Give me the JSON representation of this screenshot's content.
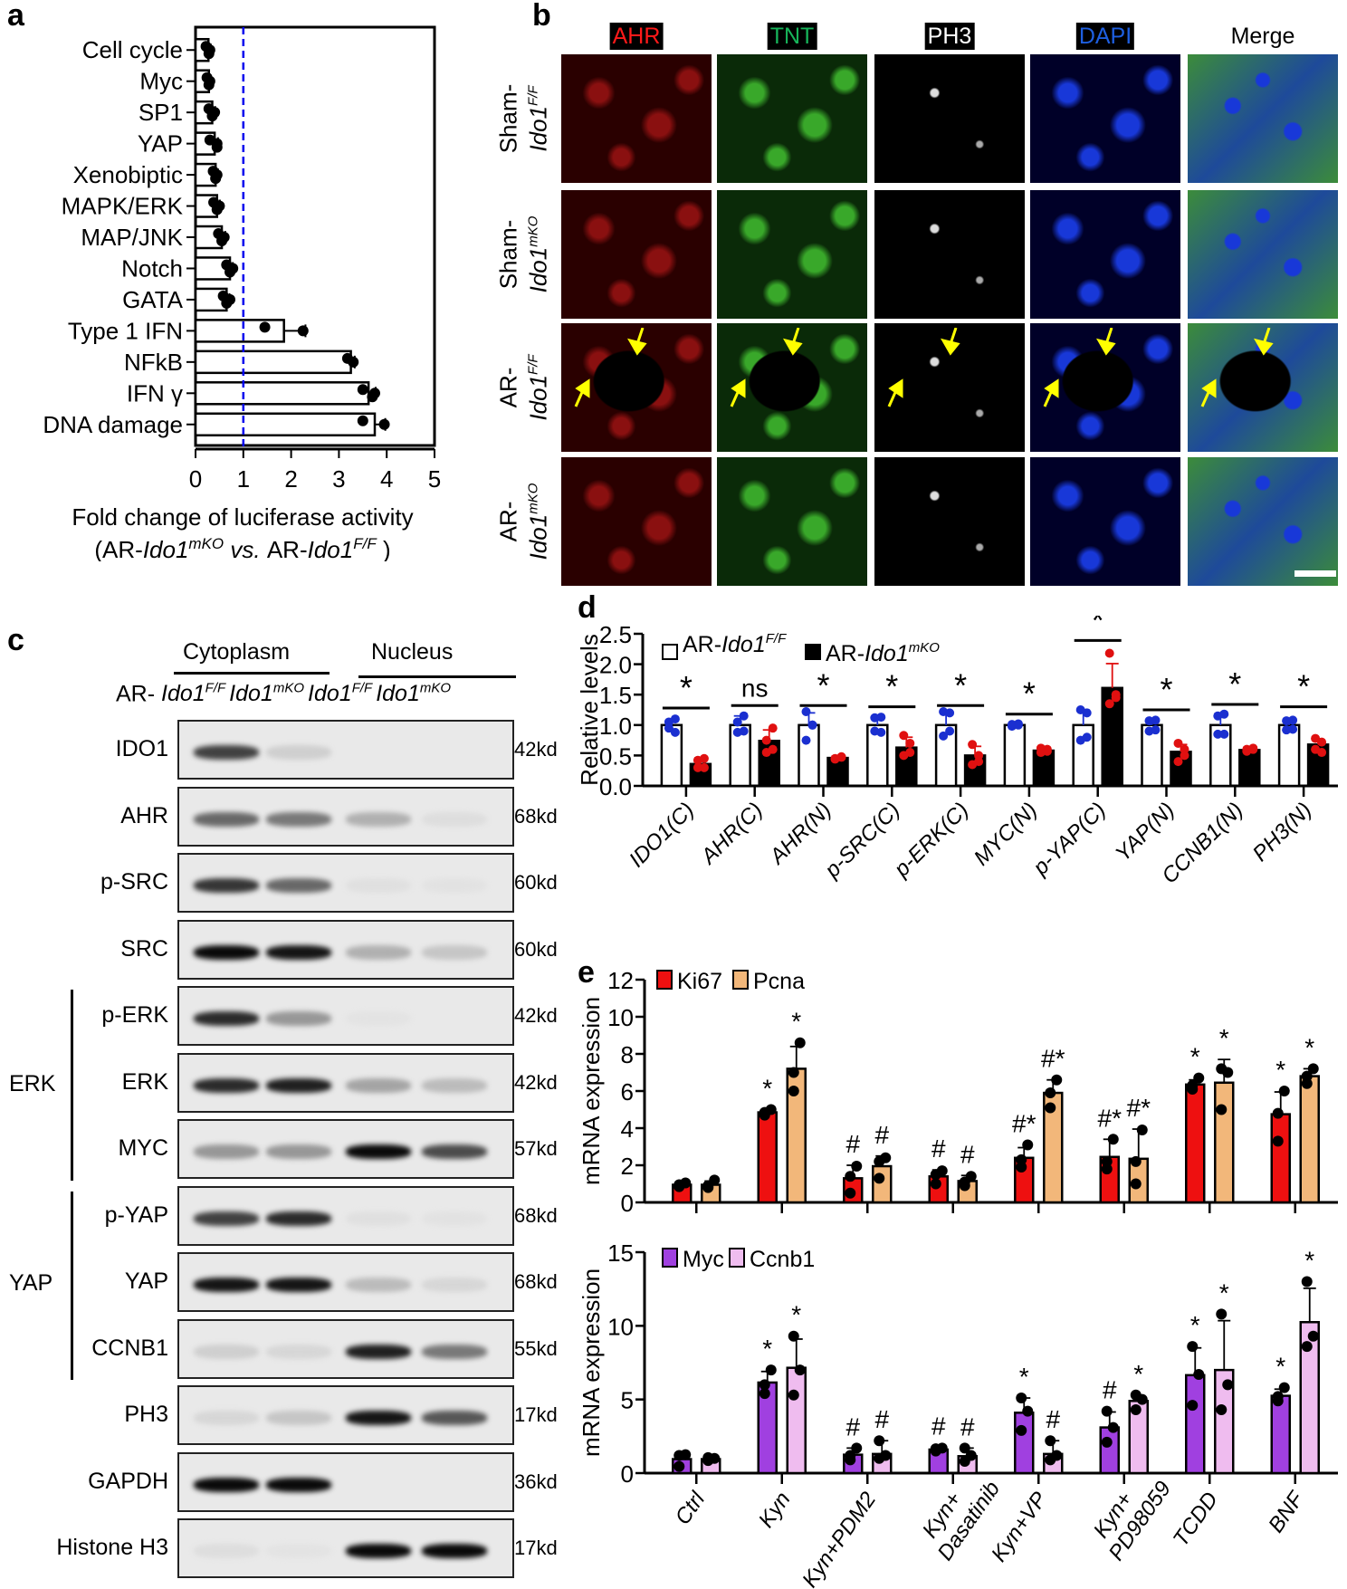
{
  "panels": {
    "a": {
      "letter": "a"
    },
    "b": {
      "letter": "b"
    },
    "c": {
      "letter": "c"
    },
    "d": {
      "letter": "d"
    },
    "e": {
      "letter": "e"
    }
  },
  "panel_b": {
    "channels": [
      {
        "label": "AHR",
        "color": "#ff1a1a"
      },
      {
        "label": "TNT",
        "color": "#17b45a"
      },
      {
        "label": "PH3",
        "color": "#ffffff"
      },
      {
        "label": "DAPI",
        "color": "#1e5fe0"
      },
      {
        "label": "Merge",
        "color": "#000000"
      }
    ],
    "rows": [
      {
        "prefix": "Sham-",
        "gene": "Ido1",
        "sup": "F/F"
      },
      {
        "prefix": "Sham-",
        "gene": "Ido1",
        "sup": "mKO"
      },
      {
        "prefix": "AR-",
        "gene": "Ido1",
        "sup": "F/F"
      },
      {
        "prefix": "AR-",
        "gene": "Ido1",
        "sup": "mKO"
      }
    ],
    "arrow_color": "#ffff00"
  },
  "panel_c": {
    "groups_top": [
      "Cytoplasm",
      "Nucleus"
    ],
    "lane_prefix": "AR-",
    "lanes": [
      {
        "gene": "Ido1",
        "sup": "F/F"
      },
      {
        "gene": "Ido1",
        "sup": "mKO"
      },
      {
        "gene": "Ido1",
        "sup": "F/F"
      },
      {
        "gene": "Ido1",
        "sup": "mKO"
      }
    ],
    "side_groups": [
      {
        "label": "ERK",
        "rows": [
          "p-ERK",
          "ERK",
          "MYC"
        ]
      },
      {
        "label": "YAP",
        "rows": [
          "p-YAP",
          "YAP",
          "CCNB1"
        ]
      }
    ],
    "blots": [
      {
        "label": "IDO1",
        "kd": "42kd",
        "intensity": [
          0.75,
          0.2,
          0.0,
          0.0
        ]
      },
      {
        "label": "AHR",
        "kd": "68kd",
        "intensity": [
          0.6,
          0.55,
          0.35,
          0.1
        ]
      },
      {
        "label": "p-SRC",
        "kd": "60kd",
        "intensity": [
          0.8,
          0.6,
          0.08,
          0.06
        ]
      },
      {
        "label": "SRC",
        "kd": "60kd",
        "intensity": [
          1.0,
          0.95,
          0.35,
          0.25
        ]
      },
      {
        "label": "p-ERK",
        "kd": "42kd",
        "intensity": [
          0.85,
          0.45,
          0.05,
          0.0
        ]
      },
      {
        "label": "ERK",
        "kd": "42kd",
        "intensity": [
          0.85,
          0.9,
          0.4,
          0.3
        ]
      },
      {
        "label": "MYC",
        "kd": "57kd",
        "intensity": [
          0.45,
          0.45,
          1.0,
          0.7
        ]
      },
      {
        "label": "p-YAP",
        "kd": "68kd",
        "intensity": [
          0.75,
          0.85,
          0.08,
          0.06
        ]
      },
      {
        "label": "YAP",
        "kd": "68kd",
        "intensity": [
          0.95,
          0.95,
          0.3,
          0.15
        ]
      },
      {
        "label": "CCNB1",
        "kd": "55kd",
        "intensity": [
          0.2,
          0.15,
          0.9,
          0.55
        ]
      },
      {
        "label": "PH3",
        "kd": "17kd",
        "intensity": [
          0.15,
          0.25,
          0.95,
          0.65
        ]
      },
      {
        "label": "GAPDH",
        "kd": "36kd",
        "intensity": [
          1.0,
          1.0,
          0.0,
          0.0
        ]
      },
      {
        "label": "Histone H3",
        "kd": "17kd",
        "intensity": [
          0.1,
          0.05,
          1.0,
          1.0
        ]
      }
    ]
  },
  "chart_data": [
    {
      "id": "a",
      "type": "bar",
      "orientation": "horizontal",
      "title": "",
      "xlabel": "Fold change of luciferase activity",
      "xlabel2_parts": [
        "(AR-",
        "Ido1",
        "mKO",
        " vs. ",
        "AR-",
        "Ido1",
        "F/F",
        " )"
      ],
      "xlim": [
        0,
        5
      ],
      "xticks": [
        0,
        1,
        2,
        3,
        4,
        5
      ],
      "reference_line": {
        "x": 1.0,
        "style": "dashed",
        "color": "#0000ee"
      },
      "categories": [
        "Cell cycle",
        "Myc",
        "SP1",
        "YAP",
        "Xenobiptic",
        "MAPK/ERK",
        "MAP/JNK",
        "Notch",
        "GATA",
        "Type 1 IFN",
        "NFkB",
        "IFN γ",
        "DNA damage"
      ],
      "values": [
        0.27,
        0.28,
        0.35,
        0.4,
        0.42,
        0.45,
        0.55,
        0.72,
        0.65,
        1.85,
        3.25,
        3.62,
        3.75
      ],
      "errors": [
        0.05,
        0.04,
        0.06,
        0.07,
        0.05,
        0.06,
        0.07,
        0.06,
        0.06,
        0.45,
        0.08,
        0.15,
        0.22
      ],
      "points": [
        [
          0.22,
          0.3,
          0.28
        ],
        [
          0.24,
          0.3,
          0.28
        ],
        [
          0.28,
          0.4,
          0.35
        ],
        [
          0.3,
          0.45,
          0.45
        ],
        [
          0.37,
          0.45,
          0.42
        ],
        [
          0.38,
          0.5,
          0.45
        ],
        [
          0.48,
          0.6,
          0.55
        ],
        [
          0.65,
          0.78,
          0.72
        ],
        [
          0.58,
          0.72,
          0.65
        ],
        [
          1.45,
          2.25
        ],
        [
          3.18,
          3.3
        ],
        [
          3.5,
          3.75,
          3.7
        ],
        [
          3.5,
          3.95
        ]
      ]
    },
    {
      "id": "d",
      "type": "bar",
      "title": "",
      "xlabel": "",
      "ylabel": "Relative levels",
      "ylim": [
        0,
        2.5
      ],
      "yticks": [
        "0.0",
        "0.5",
        "1.0",
        "1.5",
        "2.0",
        "2.5"
      ],
      "categories": [
        "IDO1(C)",
        "AHR(C)",
        "AHR(N)",
        "p-SRC(C)",
        "p-ERK(C)",
        "MYC(N)",
        "p-YAP(C)",
        "YAP(N)",
        "CCNB1(N)",
        "PH3(N)"
      ],
      "legend": [
        {
          "prefix": "AR-",
          "gene": "Ido1",
          "sup": "F/F",
          "fill": "#ffffff"
        },
        {
          "prefix": "AR-",
          "gene": "Ido1",
          "sup": "mKO",
          "fill": "#000000"
        }
      ],
      "series": [
        {
          "name": "AR-Ido1F/F",
          "fill": "#ffffff",
          "point_color": "#1a2fd0",
          "values": [
            1.0,
            1.0,
            1.0,
            1.0,
            1.0,
            1.0,
            1.0,
            1.0,
            1.0,
            1.0
          ],
          "errors": [
            0.08,
            0.15,
            0.2,
            0.12,
            0.2,
            0.03,
            0.25,
            0.08,
            0.15,
            0.07
          ],
          "points": [
            [
              0.95,
              1.1,
              1.05,
              0.88
            ],
            [
              0.88,
              1.15,
              1.05,
              0.9
            ],
            [
              0.75,
              1.0,
              1.22,
              1.0
            ],
            [
              0.9,
              1.13,
              1.12,
              0.88
            ],
            [
              0.82,
              1.2,
              1.22,
              0.9
            ],
            [
              0.98,
              1.02,
              1.01,
              1.0
            ],
            [
              0.75,
              1.2,
              1.25,
              0.8
            ],
            [
              0.9,
              1.08,
              1.07,
              0.92
            ],
            [
              0.85,
              1.18,
              1.15,
              0.85
            ],
            [
              0.92,
              1.08,
              1.07,
              0.93
            ]
          ]
        },
        {
          "name": "AR-Ido1mKO",
          "fill": "#000000",
          "point_color": "#e01010",
          "values": [
            0.36,
            0.74,
            0.46,
            0.63,
            0.5,
            0.58,
            1.61,
            0.56,
            0.59,
            0.68
          ],
          "errors": [
            0.1,
            0.18,
            0.03,
            0.17,
            0.15,
            0.04,
            0.4,
            0.12,
            0.04,
            0.08
          ],
          "points": [
            [
              0.3,
              0.45,
              0.42,
              0.3
            ],
            [
              0.55,
              0.6,
              0.75,
              0.95
            ],
            [
              0.45,
              0.48,
              0.44,
              0.47
            ],
            [
              0.5,
              0.7,
              0.83,
              0.55
            ],
            [
              0.35,
              0.5,
              0.68,
              0.4
            ],
            [
              0.55,
              0.6,
              0.62,
              0.57
            ],
            [
              1.35,
              1.5,
              2.18,
              1.45
            ],
            [
              0.4,
              0.6,
              0.7,
              0.5
            ],
            [
              0.6,
              0.62,
              0.57,
              0.6
            ],
            [
              0.6,
              0.72,
              0.78,
              0.55
            ]
          ]
        }
      ],
      "significance": [
        "*",
        "ns",
        "*",
        "*",
        "*",
        "*",
        "*",
        "*",
        "*",
        "*"
      ],
      "sig_line_y": [
        1.28,
        1.32,
        1.32,
        1.3,
        1.32,
        1.18,
        2.39,
        1.25,
        1.34,
        1.3
      ]
    },
    {
      "id": "e_top",
      "type": "bar",
      "title": "",
      "ylabel": "mRNA expression",
      "ylim": [
        0,
        12
      ],
      "yticks": [
        "0",
        "2",
        "4",
        "6",
        "8",
        "10",
        "12"
      ],
      "categories": [
        "Ctrl",
        "Kyn",
        "Kyn+PDM2",
        "Kyn+ Dasatinib",
        "Kyn+VP",
        "Kyn+ PD98059",
        "TCDD",
        "BNF"
      ],
      "series": [
        {
          "name": "Ki67",
          "fill": "#ee1010",
          "values": [
            0.95,
            4.85,
            1.3,
            1.4,
            2.4,
            2.45,
            6.35,
            4.75
          ],
          "errors": [
            0.15,
            0.15,
            0.7,
            0.35,
            0.55,
            0.95,
            0.25,
            1.2
          ],
          "points": [
            [
              0.85,
              1.05,
              0.95
            ],
            [
              4.7,
              5.0,
              4.85
            ],
            [
              0.5,
              1.95,
              1.4
            ],
            [
              1.0,
              1.7,
              1.5
            ],
            [
              1.9,
              3.1,
              2.3
            ],
            [
              1.8,
              3.4,
              2.2
            ],
            [
              6.1,
              6.7,
              6.3
            ],
            [
              3.3,
              6.0,
              4.8
            ]
          ],
          "annotations": [
            "",
            "*",
            "#",
            "#",
            "#*",
            "#*",
            "*",
            "*"
          ]
        },
        {
          "name": "Pcna",
          "fill": "#f2b77a",
          "values": [
            0.95,
            7.2,
            1.95,
            1.15,
            5.9,
            2.35,
            6.45,
            6.8
          ],
          "errors": [
            0.2,
            1.2,
            0.55,
            0.3,
            0.7,
            1.6,
            1.25,
            0.4
          ],
          "points": [
            [
              0.8,
              1.2,
              0.9
            ],
            [
              6.0,
              8.6,
              7.0
            ],
            [
              1.3,
              2.4,
              2.2
            ],
            [
              0.9,
              1.4,
              1.1
            ],
            [
              5.1,
              6.6,
              5.9
            ],
            [
              1.0,
              3.9,
              2.2
            ],
            [
              5.0,
              7.0,
              7.2
            ],
            [
              6.4,
              7.2,
              6.8
            ]
          ],
          "annotations": [
            "",
            "*",
            "#",
            "#",
            "#*",
            "#*",
            "*",
            "*"
          ]
        }
      ]
    },
    {
      "id": "e_bottom",
      "type": "bar",
      "title": "",
      "ylabel": "mRNA expression",
      "ylim": [
        0,
        15
      ],
      "yticks": [
        "0",
        "5",
        "10",
        "15"
      ],
      "categories": [
        "Ctrl",
        "Kyn",
        "Kyn+PDM2",
        "Kyn+ Dasatinib",
        "Kyn+VP",
        "Kyn+ PD98059",
        "TCDD",
        "BNF"
      ],
      "series": [
        {
          "name": "Myc",
          "fill": "#a040e0",
          "values": [
            0.95,
            6.15,
            1.25,
            1.6,
            4.1,
            3.1,
            6.65,
            5.25
          ],
          "errors": [
            0.4,
            0.75,
            0.45,
            0.15,
            1.0,
            1.05,
            1.85,
            0.45
          ],
          "points": [
            [
              0.45,
              1.25,
              1.2
            ],
            [
              5.4,
              7.0,
              6.0
            ],
            [
              0.9,
              1.7,
              1.2
            ],
            [
              1.5,
              1.7,
              1.65
            ],
            [
              2.9,
              4.2,
              5.1
            ],
            [
              2.1,
              3.1,
              4.2
            ],
            [
              4.6,
              6.7,
              8.6
            ],
            [
              4.9,
              5.8,
              5.2
            ]
          ],
          "annotations": [
            "",
            "*",
            "#",
            "#",
            "*",
            "#",
            "*",
            "*"
          ]
        },
        {
          "name": "Ccnb1",
          "fill": "#efbcef",
          "values": [
            0.95,
            7.15,
            1.3,
            1.15,
            1.3,
            4.9,
            7.0,
            10.25
          ],
          "errors": [
            0.2,
            1.95,
            0.9,
            0.55,
            0.9,
            0.35,
            3.35,
            2.3
          ],
          "points": [
            [
              0.85,
              1.0,
              1.05
            ],
            [
              5.3,
              7.0,
              9.3
            ],
            [
              1.0,
              1.2,
              2.2
            ],
            [
              0.8,
              1.2,
              1.7
            ],
            [
              0.9,
              1.2,
              2.2
            ],
            [
              4.3,
              5.0,
              5.3
            ],
            [
              4.3,
              6.0,
              10.8
            ],
            [
              8.6,
              9.3,
              13.0
            ]
          ],
          "annotations": [
            "",
            "*",
            "#",
            "#",
            "#",
            "*",
            "*",
            "*"
          ]
        }
      ]
    }
  ]
}
